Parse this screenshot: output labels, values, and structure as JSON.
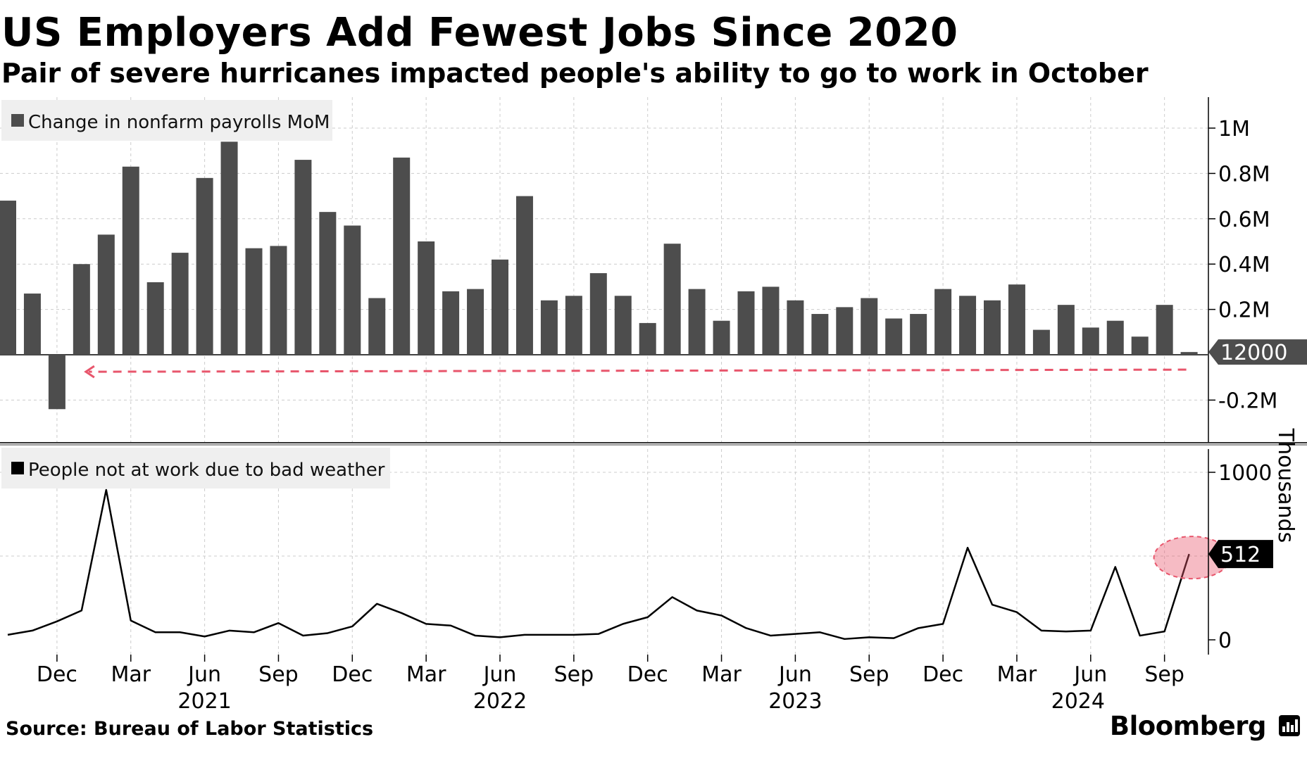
{
  "title": "US Employers Add Fewest Jobs Since 2020",
  "subtitle": "Pair of severe hurricanes impacted people's ability to go to work in October",
  "source": "Source: Bureau of Labor Statistics",
  "brand": "Bloomberg",
  "colors": {
    "bar": "#4d4d4d",
    "line": "#000000",
    "highlight": "#e8566c",
    "grid": "#cccccc"
  },
  "chart_data": [
    {
      "type": "bar",
      "legend": "Change in nonfarm payrolls MoM",
      "x": [
        "2020-10",
        "2020-11",
        "2020-12",
        "2021-01",
        "2021-02",
        "2021-03",
        "2021-04",
        "2021-05",
        "2021-06",
        "2021-07",
        "2021-08",
        "2021-09",
        "2021-10",
        "2021-11",
        "2021-12",
        "2022-01",
        "2022-02",
        "2022-03",
        "2022-04",
        "2022-05",
        "2022-06",
        "2022-07",
        "2022-08",
        "2022-09",
        "2022-10",
        "2022-11",
        "2022-12",
        "2023-01",
        "2023-02",
        "2023-03",
        "2023-04",
        "2023-05",
        "2023-06",
        "2023-07",
        "2023-08",
        "2023-09",
        "2023-10",
        "2023-11",
        "2023-12",
        "2024-01",
        "2024-02",
        "2024-03",
        "2024-04",
        "2024-05",
        "2024-06",
        "2024-07",
        "2024-08",
        "2024-09",
        "2024-10"
      ],
      "values": [
        680000,
        270000,
        -240000,
        400000,
        530000,
        830000,
        320000,
        450000,
        780000,
        940000,
        470000,
        480000,
        860000,
        630000,
        570000,
        250000,
        870000,
        500000,
        280000,
        290000,
        420000,
        700000,
        240000,
        260000,
        360000,
        260000,
        140000,
        490000,
        290000,
        150000,
        280000,
        300000,
        240000,
        180000,
        210000,
        250000,
        160000,
        180000,
        290000,
        260000,
        240000,
        310000,
        110000,
        220000,
        120000,
        150000,
        80000,
        220000,
        12000
      ],
      "latest_label": "12000",
      "yticks": [
        "1M",
        "0.8M",
        "0.6M",
        "0.4M",
        "0.2M",
        "-0.2M"
      ],
      "ylim": [
        -380000,
        1130000
      ],
      "annotation": "dashed arrow from latest value back to December 2020 level"
    },
    {
      "type": "line",
      "legend": "People not at work due to bad weather",
      "x": [
        "2020-10",
        "2020-11",
        "2020-12",
        "2021-01",
        "2021-02",
        "2021-03",
        "2021-04",
        "2021-05",
        "2021-06",
        "2021-07",
        "2021-08",
        "2021-09",
        "2021-10",
        "2021-11",
        "2021-12",
        "2022-01",
        "2022-02",
        "2022-03",
        "2022-04",
        "2022-05",
        "2022-06",
        "2022-07",
        "2022-08",
        "2022-09",
        "2022-10",
        "2022-11",
        "2022-12",
        "2023-01",
        "2023-02",
        "2023-03",
        "2023-04",
        "2023-05",
        "2023-06",
        "2023-07",
        "2023-08",
        "2023-09",
        "2023-10",
        "2023-11",
        "2023-12",
        "2024-01",
        "2024-02",
        "2024-03",
        "2024-04",
        "2024-05",
        "2024-06",
        "2024-07",
        "2024-08",
        "2024-09",
        "2024-10"
      ],
      "values": [
        30,
        55,
        110,
        175,
        895,
        115,
        45,
        45,
        20,
        55,
        45,
        100,
        25,
        40,
        80,
        215,
        160,
        95,
        85,
        25,
        15,
        30,
        30,
        30,
        35,
        95,
        135,
        255,
        175,
        145,
        70,
        25,
        35,
        45,
        5,
        15,
        10,
        70,
        95,
        550,
        210,
        165,
        55,
        50,
        55,
        435,
        25,
        50,
        512
      ],
      "latest_label": "512",
      "yticks": [
        "1000",
        "0"
      ],
      "ylabel": "Thousands",
      "ylim": [
        0,
        1000
      ]
    }
  ],
  "x_axis": {
    "month_labels": [
      "Dec",
      "Mar",
      "Jun",
      "Sep",
      "Dec",
      "Mar",
      "Jun",
      "Sep",
      "Dec",
      "Mar",
      "Jun",
      "Sep",
      "Dec",
      "Mar",
      "Jun",
      "Sep"
    ],
    "year_labels": [
      "2021",
      "2022",
      "2023",
      "2024"
    ]
  }
}
